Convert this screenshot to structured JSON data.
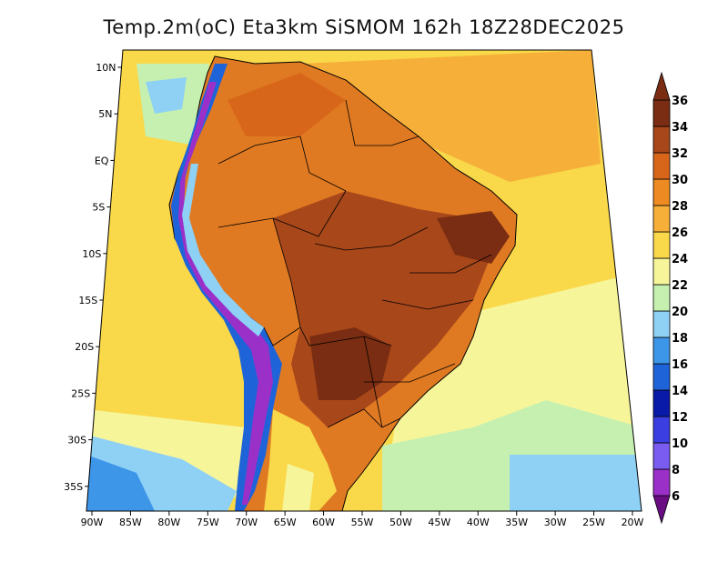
{
  "title": "Temp.2m(oC) Eta3km SiSMOM 162h 18Z28DEC2025",
  "map": {
    "region": "South America",
    "lat_ticks": [
      "10N",
      "5N",
      "EQ",
      "5S",
      "10S",
      "15S",
      "20S",
      "25S",
      "30S",
      "35S"
    ],
    "lon_ticks": [
      "90W",
      "85W",
      "80W",
      "75W",
      "70W",
      "65W",
      "60W",
      "55W",
      "50W",
      "45W",
      "40W",
      "35W",
      "30W",
      "25W",
      "20W"
    ]
  },
  "colorbar": {
    "levels": [
      "6",
      "8",
      "10",
      "12",
      "14",
      "16",
      "18",
      "20",
      "22",
      "24",
      "26",
      "28",
      "30",
      "32",
      "34",
      "36"
    ],
    "colors": [
      "#6a0d83",
      "#9b30c9",
      "#7a5cf0",
      "#3b3ee0",
      "#0a1aa8",
      "#1f63d8",
      "#3e96e8",
      "#8fd0f5",
      "#c6f0b0",
      "#f7f59a",
      "#f9d84a",
      "#f6b03a",
      "#ee8a22",
      "#d8661a",
      "#a8471a",
      "#7a2d12"
    ]
  }
}
